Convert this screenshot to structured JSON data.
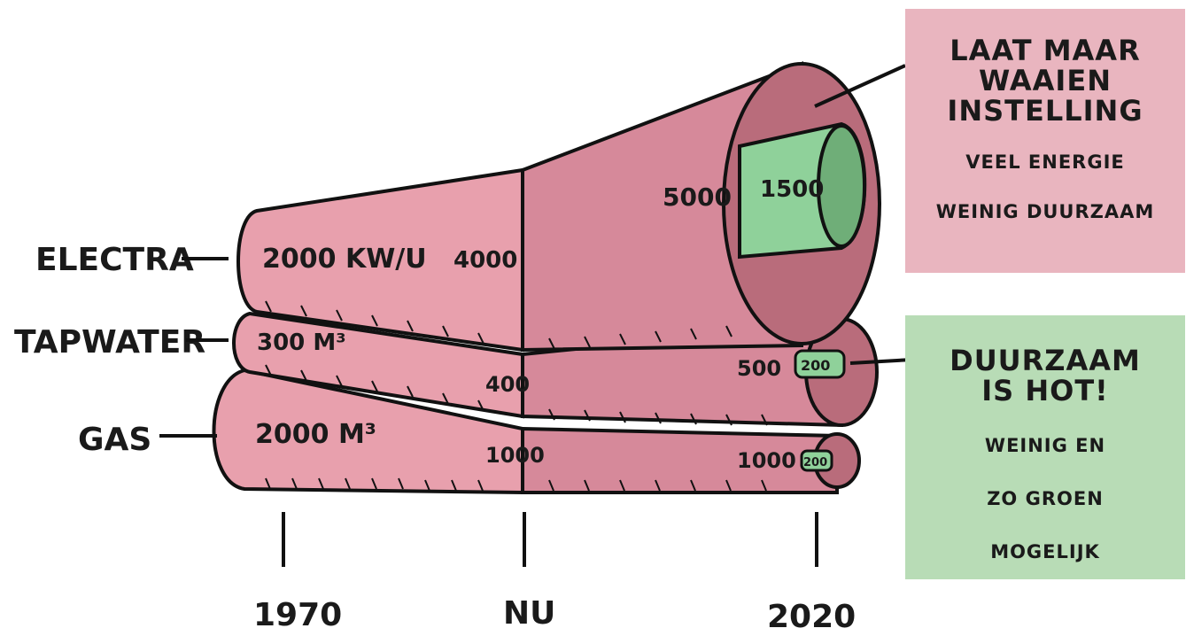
{
  "colors": {
    "pipe_pink": "#e8a0ad",
    "pipe_dark": "#b96c7b",
    "pipe_green": "#8fd19a",
    "box_red": "#e9b5bf",
    "box_green": "#b8dcb6",
    "ink": "#1a1a1a"
  },
  "rows": {
    "electra": {
      "label": "ELECTRA",
      "v1970": "2000 KW/U",
      "vnu": "4000",
      "v2020": "5000",
      "v2020_green": "1500"
    },
    "tapwater": {
      "label": "TAPWATER",
      "v1970": "300 M³",
      "vnu": "400",
      "v2020": "500",
      "v2020_green": "200"
    },
    "gas": {
      "label": "GAS",
      "v1970": "2000 M³",
      "vnu": "1000",
      "v2020": "1000",
      "v2020_green": "200"
    }
  },
  "timeline": {
    "t1": "1970",
    "t2": "NU",
    "t3": "2020"
  },
  "callout_red": {
    "headline": [
      "LAAT MAAR",
      "WAAIEN",
      "INSTELLING"
    ],
    "sub": [
      "VEEL ENERGIE",
      "WEINIG DUURZAAM"
    ]
  },
  "callout_green": {
    "headline": [
      "DUURZAAM",
      "IS HOT!"
    ],
    "sub": [
      "WEINIG EN",
      "ZO GROEN",
      "MOGELIJK"
    ]
  }
}
